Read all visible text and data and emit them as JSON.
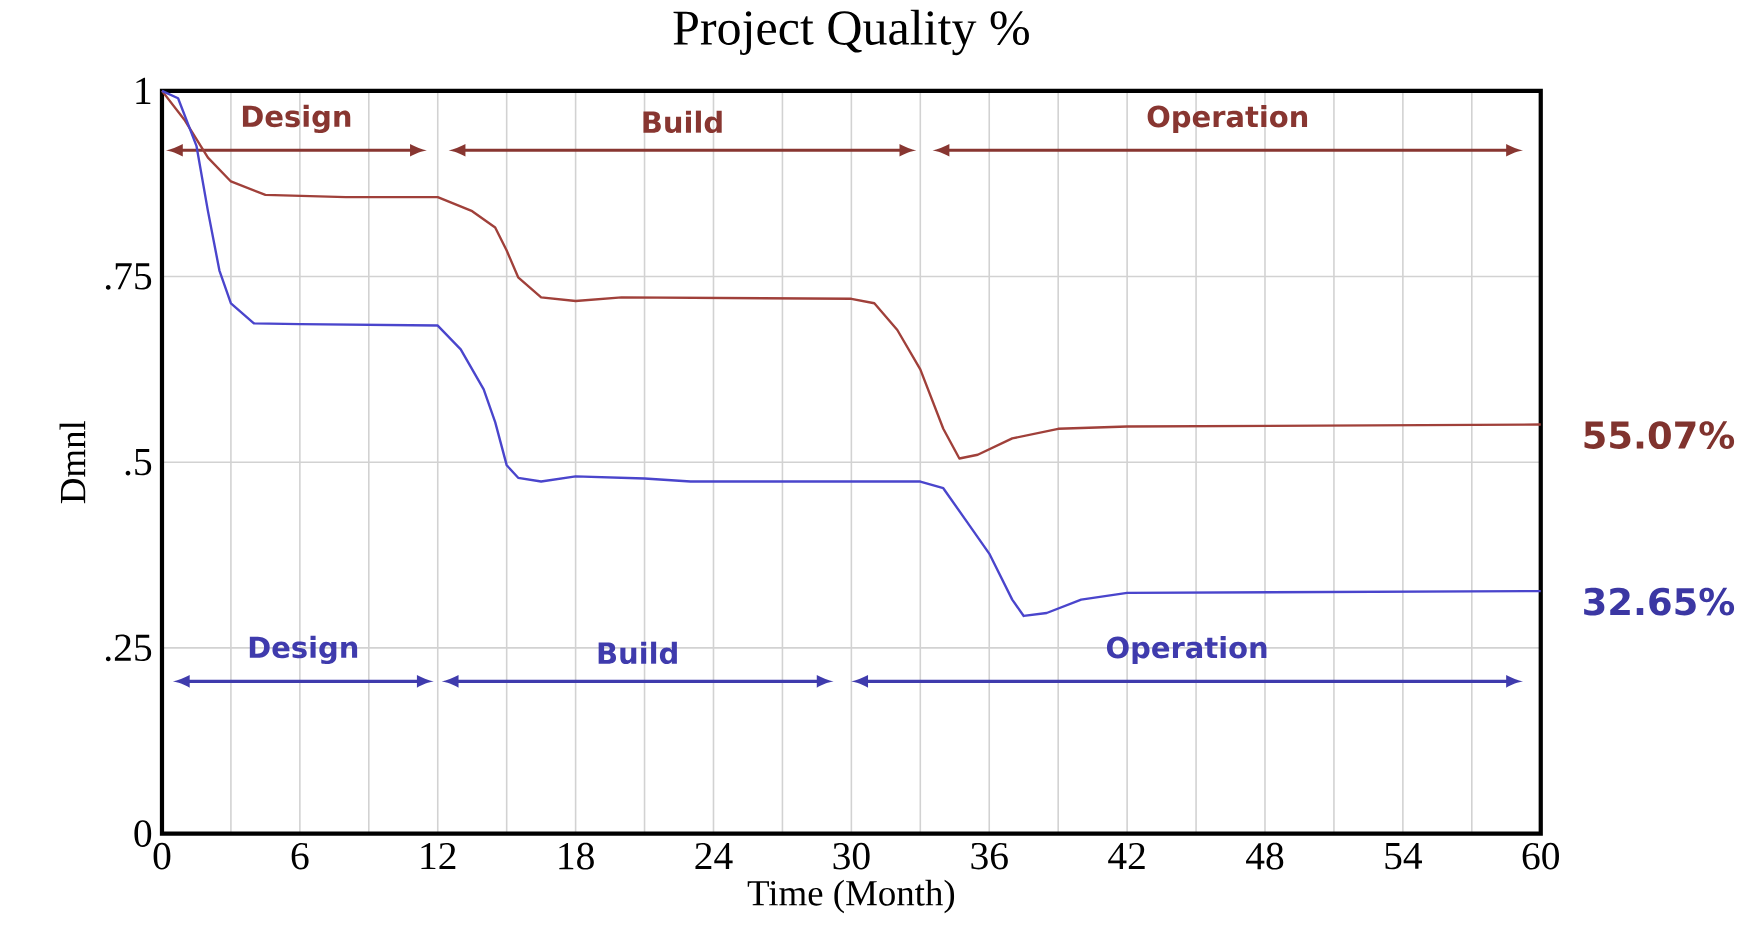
{
  "chart_data": {
    "type": "line",
    "title": "Project Quality %",
    "xlabel": "Time (Month)",
    "ylabel": "Dmnl",
    "xlim": [
      0,
      60
    ],
    "xticks": [
      0,
      6,
      12,
      18,
      24,
      30,
      36,
      42,
      48,
      54,
      60
    ],
    "ylim": [
      0,
      1
    ],
    "yticks": [
      {
        "value": 0,
        "label": "0"
      },
      {
        "value": 0.25,
        "label": ".25"
      },
      {
        "value": 0.5,
        "label": ".5"
      },
      {
        "value": 0.75,
        "label": ".75"
      },
      {
        "value": 1,
        "label": "1"
      }
    ],
    "grid": true,
    "legend": false,
    "marker": "none",
    "line_style": "solid",
    "series": [
      {
        "name": "55.07%",
        "color": "#a0403a",
        "x": [
          0,
          1,
          2,
          3,
          4.5,
          8,
          12,
          13.5,
          14.5,
          15,
          15.5,
          16.5,
          18,
          20,
          30,
          31,
          32,
          33,
          34,
          34.7,
          35.5,
          37,
          39,
          42,
          60
        ],
        "values": [
          1,
          0.96,
          0.91,
          0.878,
          0.86,
          0.857,
          0.857,
          0.838,
          0.816,
          0.785,
          0.749,
          0.722,
          0.717,
          0.722,
          0.72,
          0.714,
          0.678,
          0.625,
          0.545,
          0.505,
          0.51,
          0.532,
          0.545,
          0.548,
          0.5507
        ]
      },
      {
        "name": "32.65%",
        "color": "#4a45cc",
        "x": [
          0,
          0.7,
          1.5,
          2,
          2.5,
          3,
          4,
          6,
          12,
          13,
          14,
          14.5,
          15,
          15.5,
          16.5,
          18,
          21,
          23,
          30,
          33,
          34,
          35,
          36,
          37,
          37.5,
          38.5,
          40,
          42,
          60
        ],
        "values": [
          1,
          0.99,
          0.926,
          0.838,
          0.758,
          0.714,
          0.687,
          0.686,
          0.684,
          0.652,
          0.598,
          0.554,
          0.496,
          0.479,
          0.474,
          0.481,
          0.478,
          0.474,
          0.474,
          0.474,
          0.465,
          0.421,
          0.377,
          0.315,
          0.293,
          0.297,
          0.315,
          0.324,
          0.3265
        ]
      }
    ],
    "annotations": [
      "Design",
      "Build",
      "Operation",
      "Design",
      "Build",
      "Operation"
    ]
  }
}
